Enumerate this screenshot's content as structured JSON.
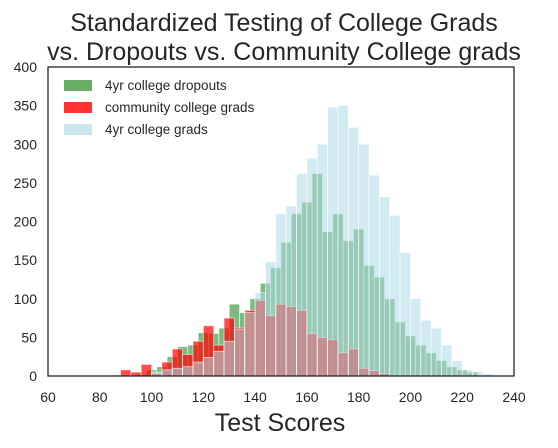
{
  "chart_data": {
    "type": "bar",
    "title_lines": [
      "Standardized Testing of College Grads",
      "vs. Dropouts vs. Community College grads"
    ],
    "xlabel": "Test Scores",
    "ylabel": "",
    "xlim": [
      60,
      240
    ],
    "ylim": [
      0,
      400
    ],
    "xticks": [
      60,
      80,
      100,
      120,
      140,
      160,
      180,
      200,
      220,
      240
    ],
    "yticks": [
      0,
      50,
      100,
      150,
      200,
      250,
      300,
      350,
      400
    ],
    "grid": false,
    "legend_position": "upper-left",
    "series": [
      {
        "name": "4yr college dropouts",
        "color": "#2a8a2a",
        "opacity": 0.6,
        "bins": [
          [
            90,
            94,
            1
          ],
          [
            94,
            98,
            2
          ],
          [
            98,
            102,
            8
          ],
          [
            102,
            106,
            12
          ],
          [
            106,
            110,
            25
          ],
          [
            110,
            114,
            38
          ],
          [
            114,
            118,
            40
          ],
          [
            118,
            122,
            56
          ],
          [
            122,
            126,
            55
          ],
          [
            126,
            130,
            62
          ],
          [
            130,
            134,
            93
          ],
          [
            134,
            138,
            82
          ],
          [
            138,
            142,
            100
          ],
          [
            142,
            146,
            120
          ],
          [
            146,
            150,
            140
          ],
          [
            150,
            154,
            173
          ],
          [
            154,
            158,
            210
          ],
          [
            158,
            162,
            225
          ],
          [
            162,
            166,
            262
          ],
          [
            166,
            170,
            187
          ],
          [
            170,
            174,
            210
          ],
          [
            174,
            178,
            175
          ],
          [
            178,
            182,
            190
          ],
          [
            182,
            186,
            143
          ],
          [
            186,
            190,
            128
          ],
          [
            190,
            194,
            100
          ],
          [
            194,
            198,
            70
          ],
          [
            198,
            202,
            52
          ],
          [
            202,
            206,
            40
          ],
          [
            206,
            210,
            30
          ],
          [
            210,
            214,
            20
          ],
          [
            214,
            218,
            12
          ],
          [
            218,
            222,
            8
          ],
          [
            222,
            226,
            5
          ]
        ]
      },
      {
        "name": "community college grads",
        "color": "#ff0000",
        "opacity": 0.7,
        "bins": [
          [
            84,
            88,
            1
          ],
          [
            88,
            92,
            8
          ],
          [
            92,
            96,
            5
          ],
          [
            96,
            100,
            15
          ],
          [
            100,
            104,
            3
          ],
          [
            104,
            108,
            18
          ],
          [
            108,
            112,
            35
          ],
          [
            112,
            116,
            28
          ],
          [
            116,
            120,
            45
          ],
          [
            120,
            124,
            65
          ],
          [
            124,
            128,
            40
          ],
          [
            128,
            132,
            75
          ],
          [
            132,
            136,
            62
          ],
          [
            136,
            140,
            85
          ],
          [
            140,
            144,
            98
          ],
          [
            144,
            148,
            78
          ],
          [
            148,
            152,
            93
          ],
          [
            152,
            156,
            90
          ],
          [
            156,
            160,
            85
          ],
          [
            160,
            164,
            55
          ],
          [
            164,
            168,
            50
          ],
          [
            168,
            172,
            47
          ],
          [
            172,
            176,
            30
          ],
          [
            176,
            180,
            35
          ],
          [
            180,
            184,
            10
          ],
          [
            184,
            188,
            7
          ],
          [
            188,
            192,
            3
          ]
        ]
      },
      {
        "name": "4yr college grads",
        "color": "#add8e6",
        "opacity": 0.55,
        "bins": [
          [
            100,
            104,
            5
          ],
          [
            104,
            108,
            8
          ],
          [
            108,
            112,
            10
          ],
          [
            112,
            116,
            12
          ],
          [
            116,
            120,
            18
          ],
          [
            120,
            124,
            24
          ],
          [
            124,
            128,
            32
          ],
          [
            128,
            132,
            45
          ],
          [
            132,
            136,
            60
          ],
          [
            136,
            140,
            82
          ],
          [
            140,
            144,
            108
          ],
          [
            144,
            148,
            148
          ],
          [
            148,
            152,
            210
          ],
          [
            152,
            156,
            220
          ],
          [
            156,
            160,
            262
          ],
          [
            160,
            164,
            282
          ],
          [
            164,
            168,
            300
          ],
          [
            168,
            172,
            348
          ],
          [
            172,
            176,
            350
          ],
          [
            176,
            180,
            322
          ],
          [
            180,
            184,
            300
          ],
          [
            184,
            188,
            260
          ],
          [
            188,
            192,
            232
          ],
          [
            192,
            196,
            208
          ],
          [
            196,
            200,
            160
          ],
          [
            200,
            204,
            100
          ],
          [
            204,
            208,
            72
          ],
          [
            208,
            212,
            62
          ],
          [
            212,
            216,
            40
          ],
          [
            216,
            220,
            20
          ],
          [
            220,
            224,
            8
          ],
          [
            224,
            228,
            6
          ],
          [
            228,
            232,
            3
          ]
        ]
      }
    ]
  }
}
